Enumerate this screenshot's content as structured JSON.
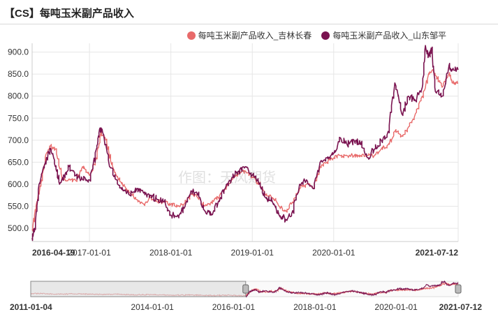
{
  "title": "【CS】每吨玉米副产品收入",
  "watermark": "作图：天风期货",
  "colors": {
    "jilin": "#e86a6a",
    "shandong": "#7a1350",
    "grid": "#e6e6e6",
    "axis": "#999999"
  },
  "chart_data": {
    "type": "line",
    "title": "【CS】每吨玉米副产品收入",
    "ylim": [
      470,
      920
    ],
    "yticks": [
      500,
      550,
      600,
      650,
      700,
      750,
      800,
      850,
      900
    ],
    "ytick_labels": [
      "500.0",
      "550.0",
      "600.0",
      "650.0",
      "700.0",
      "750.0",
      "800.0",
      "850.0",
      "900.0"
    ],
    "xlim": [
      "2016-04-19",
      "2021-07-12"
    ],
    "xticks": [
      "2016-04-19",
      "2017-01-01",
      "2018-01-01",
      "2019-01-01",
      "2020-01-01",
      "2021-07-12"
    ],
    "grid": true,
    "legend_position": "top-right",
    "series": [
      {
        "name": "每吨玉米副产品收入_吉林长春",
        "color": "#e86a6a",
        "points": [
          [
            "2016-04-19",
            498
          ],
          [
            "2016-05-10",
            560
          ],
          [
            "2016-06-01",
            610
          ],
          [
            "2016-06-20",
            668
          ],
          [
            "2016-07-10",
            686
          ],
          [
            "2016-08-01",
            680
          ],
          [
            "2016-09-01",
            610
          ],
          [
            "2016-10-01",
            612
          ],
          [
            "2016-11-01",
            608
          ],
          [
            "2016-12-01",
            640
          ],
          [
            "2017-01-01",
            620
          ],
          [
            "2017-02-01",
            660
          ],
          [
            "2017-02-20",
            715
          ],
          [
            "2017-03-15",
            700
          ],
          [
            "2017-04-10",
            645
          ],
          [
            "2017-05-01",
            620
          ],
          [
            "2017-06-01",
            595
          ],
          [
            "2017-07-01",
            580
          ],
          [
            "2017-08-01",
            565
          ],
          [
            "2017-09-01",
            555
          ],
          [
            "2017-10-01",
            570
          ],
          [
            "2017-11-01",
            560
          ],
          [
            "2017-12-01",
            560
          ],
          [
            "2018-01-01",
            555
          ],
          [
            "2018-02-01",
            550
          ],
          [
            "2018-03-01",
            555
          ],
          [
            "2018-04-01",
            578
          ],
          [
            "2018-05-01",
            570
          ],
          [
            "2018-06-01",
            550
          ],
          [
            "2018-07-01",
            560
          ],
          [
            "2018-08-01",
            570
          ],
          [
            "2018-09-01",
            590
          ],
          [
            "2018-10-01",
            610
          ],
          [
            "2018-11-01",
            625
          ],
          [
            "2018-12-01",
            630
          ],
          [
            "2019-01-01",
            615
          ],
          [
            "2019-02-01",
            600
          ],
          [
            "2019-03-01",
            575
          ],
          [
            "2019-04-01",
            570
          ],
          [
            "2019-05-01",
            550
          ],
          [
            "2019-06-01",
            540
          ],
          [
            "2019-07-01",
            560
          ],
          [
            "2019-08-01",
            590
          ],
          [
            "2019-09-01",
            600
          ],
          [
            "2019-10-01",
            590
          ],
          [
            "2019-11-01",
            640
          ],
          [
            "2019-12-01",
            650
          ],
          [
            "2020-01-01",
            660
          ],
          [
            "2020-02-01",
            665
          ],
          [
            "2020-03-01",
            665
          ],
          [
            "2020-04-01",
            665
          ],
          [
            "2020-05-01",
            665
          ],
          [
            "2020-06-01",
            665
          ],
          [
            "2020-07-01",
            665
          ],
          [
            "2020-08-01",
            680
          ],
          [
            "2020-09-01",
            690
          ],
          [
            "2020-10-01",
            720
          ],
          [
            "2020-11-01",
            710
          ],
          [
            "2020-12-01",
            730
          ],
          [
            "2021-01-01",
            760
          ],
          [
            "2021-02-01",
            800
          ],
          [
            "2021-03-01",
            850
          ],
          [
            "2021-03-20",
            860
          ],
          [
            "2021-04-10",
            840
          ],
          [
            "2021-05-01",
            820
          ],
          [
            "2021-06-01",
            850
          ],
          [
            "2021-06-15",
            830
          ],
          [
            "2021-07-12",
            830
          ]
        ]
      },
      {
        "name": "每吨玉米副产品收入_山东邹平",
        "color": "#7a1350",
        "points": [
          [
            "2016-04-19",
            478
          ],
          [
            "2016-05-01",
            500
          ],
          [
            "2016-05-20",
            600
          ],
          [
            "2016-06-10",
            640
          ],
          [
            "2016-06-25",
            660
          ],
          [
            "2016-07-10",
            682
          ],
          [
            "2016-08-01",
            640
          ],
          [
            "2016-08-20",
            600
          ],
          [
            "2016-09-10",
            620
          ],
          [
            "2016-10-01",
            640
          ],
          [
            "2016-11-01",
            620
          ],
          [
            "2016-12-01",
            610
          ],
          [
            "2017-01-01",
            610
          ],
          [
            "2017-02-01",
            680
          ],
          [
            "2017-02-15",
            725
          ],
          [
            "2017-03-01",
            718
          ],
          [
            "2017-04-01",
            640
          ],
          [
            "2017-05-01",
            610
          ],
          [
            "2017-06-01",
            585
          ],
          [
            "2017-07-01",
            575
          ],
          [
            "2017-08-01",
            590
          ],
          [
            "2017-09-01",
            580
          ],
          [
            "2017-10-01",
            575
          ],
          [
            "2017-11-01",
            565
          ],
          [
            "2017-12-01",
            560
          ],
          [
            "2018-01-01",
            530
          ],
          [
            "2018-02-01",
            530
          ],
          [
            "2018-03-01",
            545
          ],
          [
            "2018-04-01",
            585
          ],
          [
            "2018-05-01",
            575
          ],
          [
            "2018-06-01",
            540
          ],
          [
            "2018-07-01",
            530
          ],
          [
            "2018-08-01",
            560
          ],
          [
            "2018-09-01",
            590
          ],
          [
            "2018-10-01",
            615
          ],
          [
            "2018-11-01",
            630
          ],
          [
            "2018-12-01",
            640
          ],
          [
            "2019-01-01",
            620
          ],
          [
            "2019-02-01",
            600
          ],
          [
            "2019-03-01",
            570
          ],
          [
            "2019-04-01",
            560
          ],
          [
            "2019-05-01",
            530
          ],
          [
            "2019-06-01",
            520
          ],
          [
            "2019-07-01",
            540
          ],
          [
            "2019-08-01",
            600
          ],
          [
            "2019-09-01",
            610
          ],
          [
            "2019-10-01",
            590
          ],
          [
            "2019-11-01",
            650
          ],
          [
            "2019-12-01",
            660
          ],
          [
            "2020-01-01",
            670
          ],
          [
            "2020-02-01",
            705
          ],
          [
            "2020-03-01",
            690
          ],
          [
            "2020-04-01",
            700
          ],
          [
            "2020-05-01",
            690
          ],
          [
            "2020-06-01",
            660
          ],
          [
            "2020-07-01",
            680
          ],
          [
            "2020-08-01",
            700
          ],
          [
            "2020-09-01",
            720
          ],
          [
            "2020-10-01",
            830
          ],
          [
            "2020-11-01",
            760
          ],
          [
            "2020-12-01",
            800
          ],
          [
            "2021-01-01",
            790
          ],
          [
            "2021-02-01",
            820
          ],
          [
            "2021-02-15",
            915
          ],
          [
            "2021-03-01",
            890
          ],
          [
            "2021-03-15",
            905
          ],
          [
            "2021-04-01",
            810
          ],
          [
            "2021-05-01",
            800
          ],
          [
            "2021-06-01",
            870
          ],
          [
            "2021-06-15",
            860
          ],
          [
            "2021-07-12",
            860
          ]
        ]
      }
    ],
    "navigator": {
      "xlim": [
        "2011-01-04",
        "2021-07-12"
      ],
      "xticks": [
        "2011-01-04",
        "2014-01-01",
        "2016-01-01",
        "2018-01-01",
        "2020-01-01",
        "2021-07-12"
      ],
      "selected_range": [
        "2016-04-19",
        "2021-07-12"
      ]
    }
  }
}
